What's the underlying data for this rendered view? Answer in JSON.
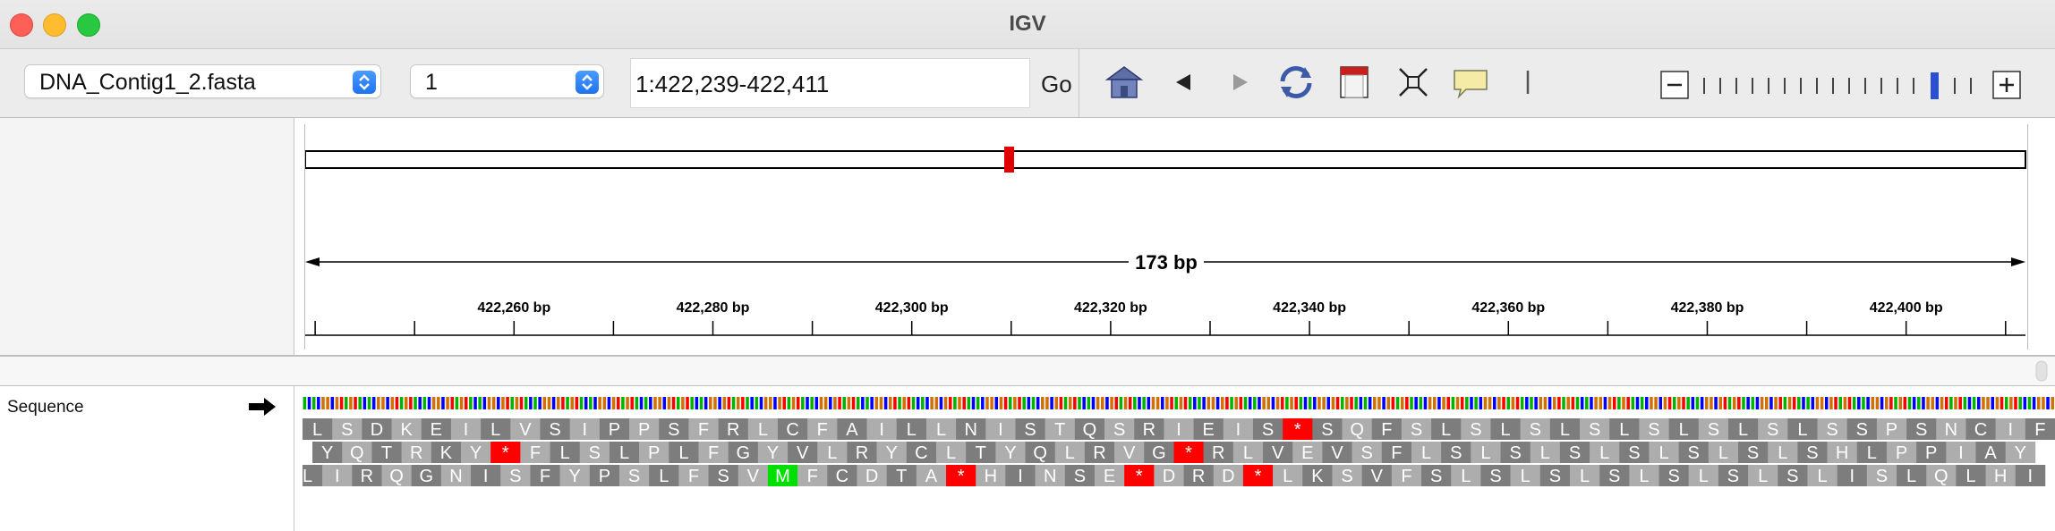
{
  "window": {
    "title": "IGV"
  },
  "toolbar": {
    "genome": "DNA_Contig1_2.fasta",
    "chromosome": "1",
    "locus": "1:422,239-422,411",
    "go_label": "Go"
  },
  "ruler": {
    "span_label": "173 bp",
    "ticks": [
      "422,260 bp",
      "422,280 bp",
      "422,300 bp",
      "422,320 bp",
      "422,340 bp",
      "422,360 bp",
      "422,380 bp",
      "422,400 bp"
    ]
  },
  "track": {
    "name": "Sequence",
    "frames": [
      "LSDKEILVSIPPSFRLCFAILLNISTQSRIEIS*SQFSLSLSLSLSLSLSLSSPSNCIF",
      "YQTRKY*FLSLPLFGYVLRYCLTYQLRVG*RLVEVSFLSLSLSLSLSLSLSHLPPIAY",
      "LIRQGNISFYPSLFSVMFCDTA*HINSE*DRD*LKSVFSLSLSLSLSLSLSLISLQLHI"
    ]
  },
  "colors": {
    "A": "#00b400",
    "C": "#0000ff",
    "G": "#d17105",
    "T": "#ff0000",
    "stop": "#ff0000",
    "start": "#00e000",
    "aa_dark": "#7d7d7d",
    "aa_light": "#adadad"
  }
}
